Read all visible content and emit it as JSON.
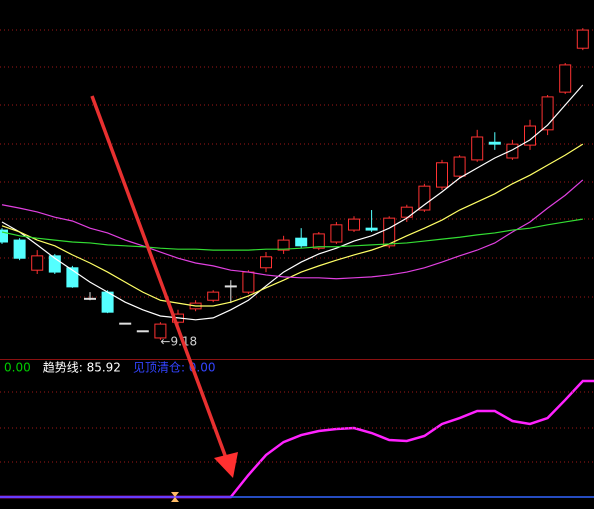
{
  "chart_data": [
    {
      "type": "candlestick",
      "up_color": "#ff3232",
      "down_color": "#54ffff",
      "flat_color": "#e0e0e0",
      "ylim": [
        8.8,
        16.3
      ],
      "grid": true,
      "open": [
        11.48,
        11.27,
        10.64,
        10.94,
        10.69,
        10.05,
        10.18,
        9.53,
        9.37,
        9.22,
        9.55,
        9.83,
        10.01,
        10.31,
        10.18,
        10.69,
        11.06,
        11.31,
        11.1,
        11.23,
        11.48,
        11.52,
        11.15,
        11.75,
        11.9,
        12.38,
        12.61,
        12.95,
        13.32,
        12.99,
        13.26,
        13.58,
        14.37,
        15.29
      ],
      "high": [
        11.52,
        11.31,
        11.06,
        10.98,
        10.73,
        10.18,
        10.22,
        9.53,
        9.37,
        9.55,
        9.81,
        10.01,
        10.22,
        10.43,
        10.64,
        11.02,
        11.36,
        11.52,
        11.44,
        11.65,
        11.77,
        11.9,
        11.77,
        12.01,
        12.45,
        12.95,
        13.05,
        13.58,
        13.53,
        13.37,
        13.79,
        14.31,
        14.98,
        15.71
      ],
      "low": [
        11.19,
        10.85,
        10.56,
        10.56,
        10.27,
        10.01,
        9.74,
        9.53,
        9.37,
        9.18,
        9.47,
        9.78,
        9.97,
        9.95,
        10.14,
        10.6,
        10.98,
        11.1,
        11.06,
        11.19,
        11.44,
        11.44,
        11.1,
        11.65,
        11.86,
        12.32,
        12.57,
        12.91,
        13.16,
        12.95,
        13.16,
        13.47,
        14.33,
        15.25
      ],
      "close": [
        11.23,
        10.89,
        10.94,
        10.6,
        10.29,
        10.05,
        9.76,
        9.53,
        9.37,
        9.51,
        9.72,
        9.95,
        10.18,
        10.31,
        10.6,
        10.92,
        11.27,
        11.15,
        11.4,
        11.59,
        11.71,
        11.48,
        11.73,
        11.96,
        12.4,
        12.89,
        13.01,
        13.43,
        13.28,
        13.28,
        13.66,
        14.27,
        14.94,
        15.67
      ],
      "series": [
        {
          "color": "#ffffff",
          "values": [
            11.65,
            11.44,
            11.17,
            10.89,
            10.64,
            10.39,
            10.18,
            9.97,
            9.81,
            9.68,
            9.64,
            9.6,
            9.64,
            9.81,
            10.01,
            10.31,
            10.6,
            10.81,
            10.98,
            11.1,
            11.25,
            11.36,
            11.52,
            11.73,
            12.01,
            12.28,
            12.57,
            12.78,
            12.99,
            13.16,
            13.37,
            13.68,
            14.1,
            14.52
          ]
        },
        {
          "color": "#ffff66",
          "values": [
            11.57,
            11.44,
            11.27,
            11.15,
            10.96,
            10.79,
            10.6,
            10.39,
            10.18,
            10.01,
            9.95,
            9.89,
            9.89,
            9.97,
            10.1,
            10.27,
            10.43,
            10.6,
            10.73,
            10.85,
            10.96,
            11.06,
            11.19,
            11.36,
            11.52,
            11.69,
            11.9,
            12.07,
            12.24,
            12.45,
            12.63,
            12.84,
            13.05,
            13.28
          ]
        },
        {
          "color": "#e040e0",
          "values": [
            12.01,
            11.94,
            11.86,
            11.75,
            11.67,
            11.52,
            11.42,
            11.27,
            11.15,
            11.02,
            10.89,
            10.79,
            10.73,
            10.64,
            10.6,
            10.54,
            10.5,
            10.48,
            10.48,
            10.46,
            10.48,
            10.5,
            10.54,
            10.6,
            10.69,
            10.81,
            10.94,
            11.06,
            11.21,
            11.44,
            11.65,
            11.94,
            12.21,
            12.53
          ]
        },
        {
          "color": "#33dd33",
          "values": [
            11.44,
            11.36,
            11.31,
            11.27,
            11.23,
            11.21,
            11.17,
            11.15,
            11.13,
            11.1,
            11.08,
            11.08,
            11.06,
            11.06,
            11.06,
            11.08,
            11.08,
            11.1,
            11.13,
            11.13,
            11.15,
            11.17,
            11.19,
            11.21,
            11.25,
            11.29,
            11.33,
            11.38,
            11.42,
            11.48,
            11.52,
            11.59,
            11.65,
            11.71
          ]
        }
      ],
      "annotation": "←9.18"
    },
    {
      "type": "line",
      "ylim": [
        0,
        100
      ],
      "grid": true,
      "series": [
        {
          "legend": "0.00",
          "color": "#00cc00",
          "values": [
            0,
            0,
            0,
            0,
            0,
            0,
            0,
            0,
            0,
            0,
            0,
            0,
            0,
            0,
            0,
            0,
            0,
            0,
            0,
            0,
            0,
            0,
            0,
            0,
            0,
            0,
            0,
            0,
            0,
            0,
            0,
            0,
            0,
            0
          ]
        },
        {
          "legend": "趋势线: 85.92",
          "color": "#ff22ff",
          "values": [
            0,
            0,
            0,
            0,
            0,
            0,
            0,
            0,
            0,
            0,
            0,
            0,
            0,
            0,
            16.3,
            31.1,
            40.7,
            45.9,
            48.9,
            50.4,
            51.1,
            47.4,
            42.2,
            41.5,
            45.2,
            54.1,
            58.5,
            63.7,
            63.7,
            56.3,
            54.1,
            58.5,
            71.9,
            85.92
          ]
        },
        {
          "legend": "见顶清仓: 0.00",
          "color": "#3344ff",
          "values": [
            0,
            0,
            0,
            0,
            0,
            0,
            0,
            0,
            0,
            0,
            0,
            0,
            0,
            0,
            0,
            0,
            0,
            0,
            0,
            0,
            0,
            0,
            0,
            0,
            0,
            0,
            0,
            0,
            0,
            0,
            0,
            0,
            0,
            0
          ]
        }
      ]
    }
  ]
}
